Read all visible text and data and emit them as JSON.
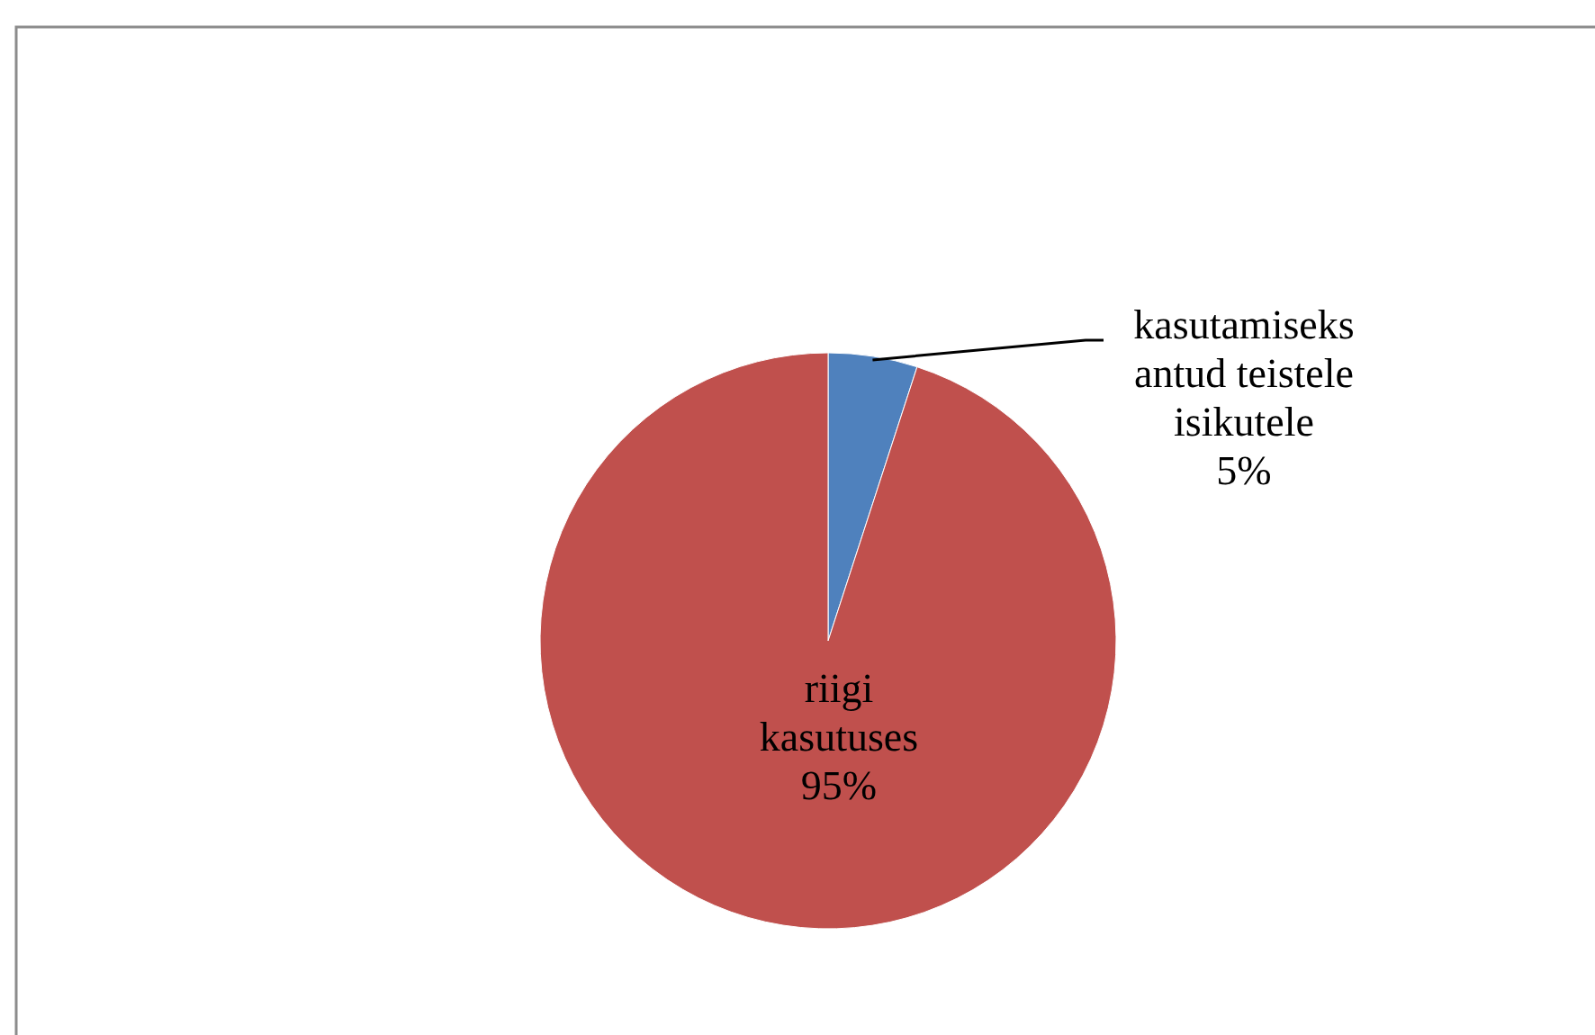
{
  "chart_data": {
    "type": "pie",
    "categories": [
      "kasutamiseks\nantud teistele\nisikutele",
      "riigi\nkasutuses"
    ],
    "values": [
      5,
      95
    ],
    "colors": [
      "#4f81bd",
      "#c0504d"
    ],
    "value_labels": [
      "5%",
      "95%"
    ],
    "legend": false
  }
}
